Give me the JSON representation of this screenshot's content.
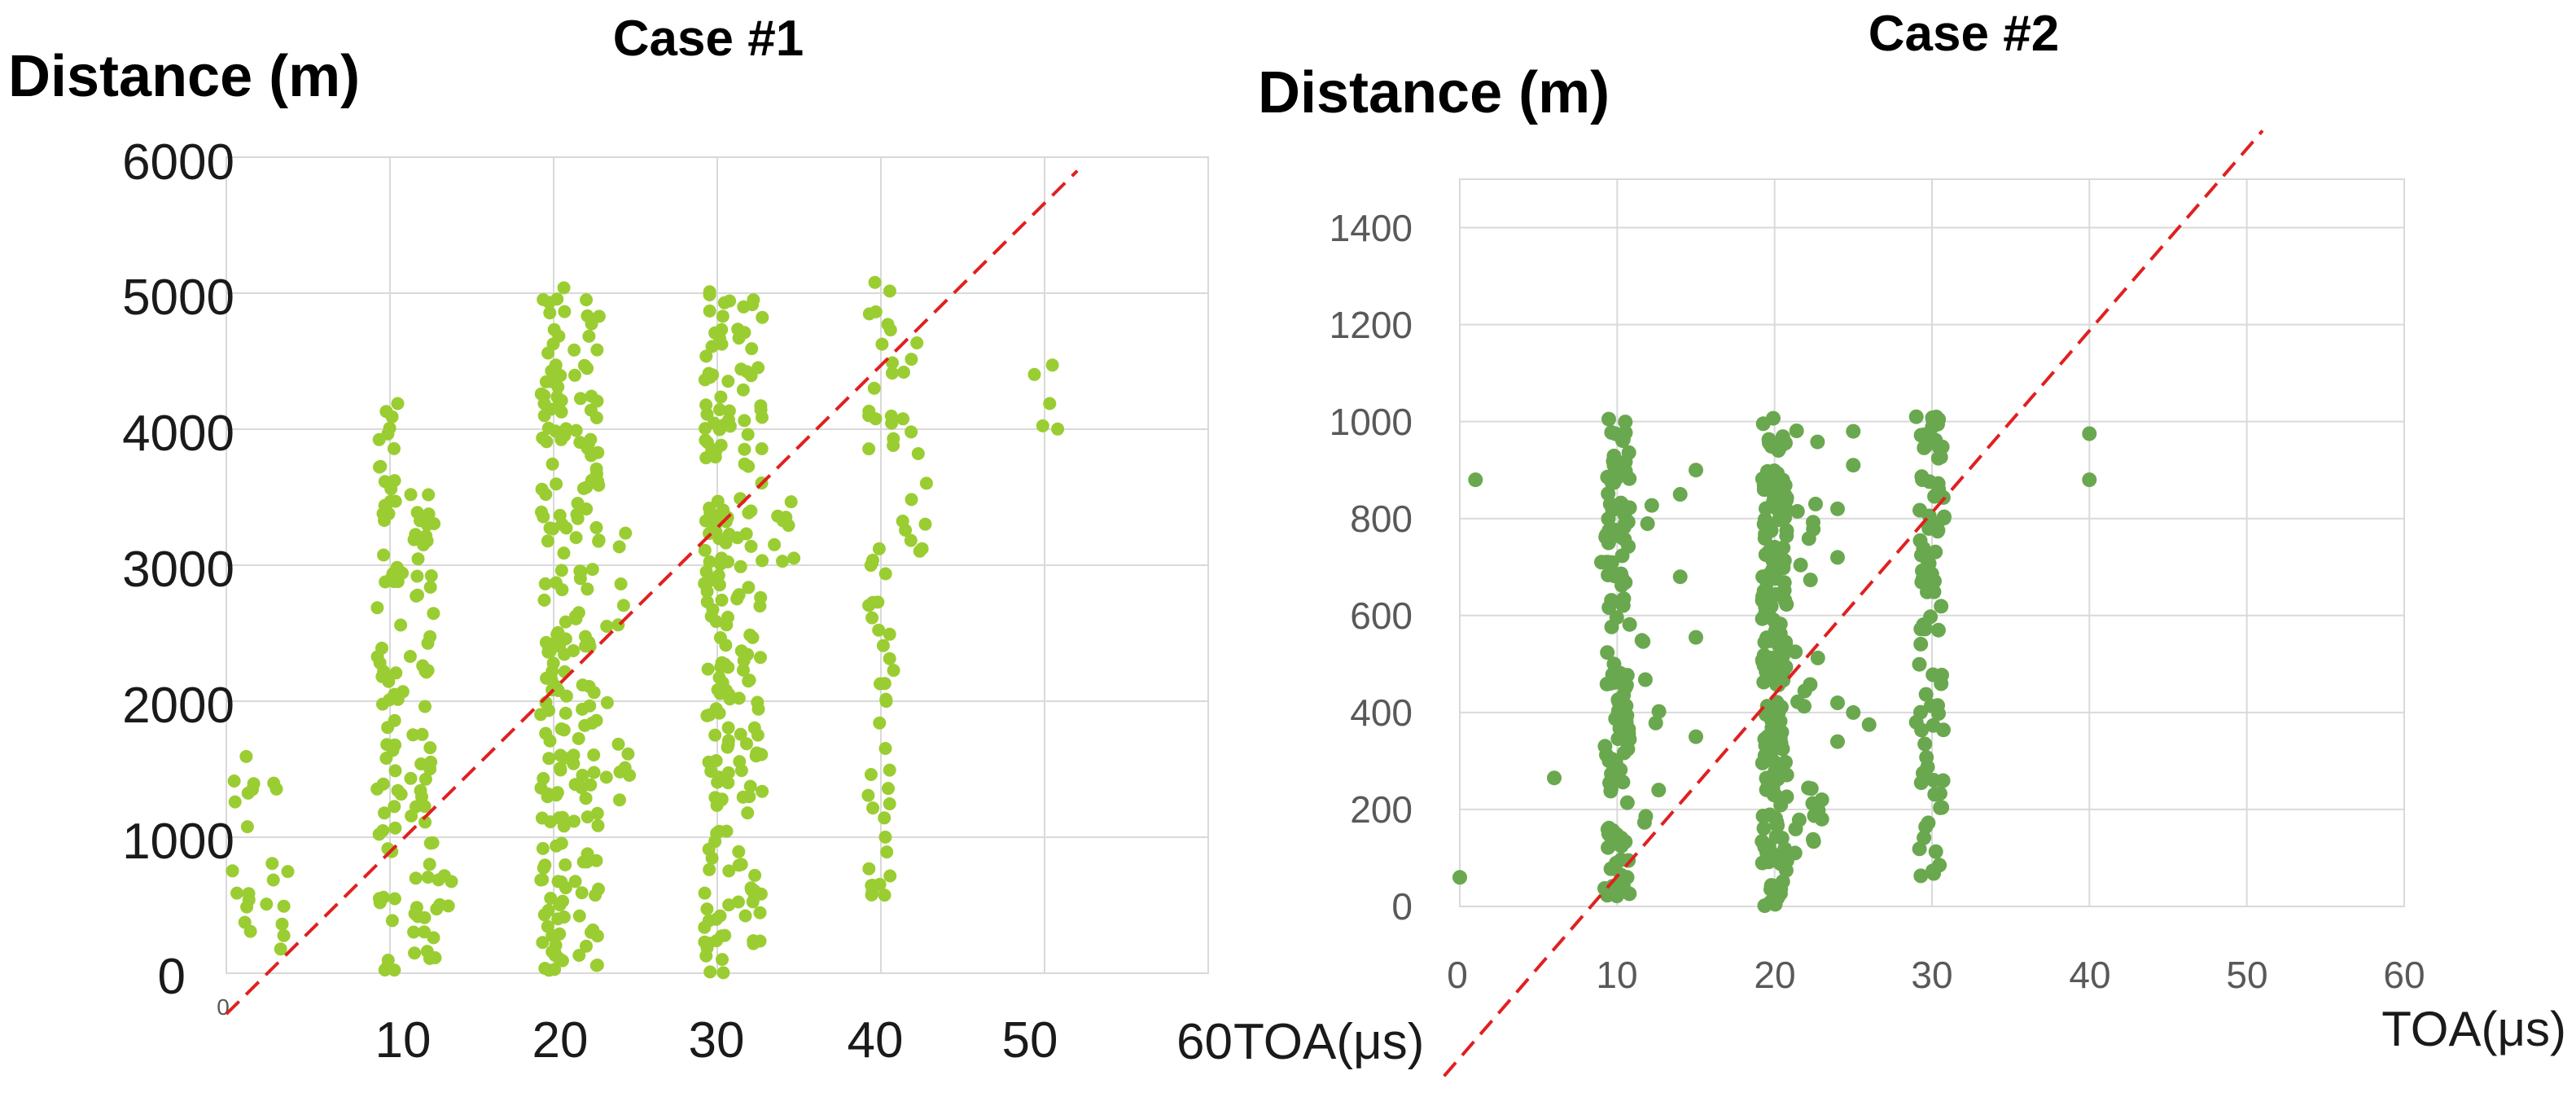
{
  "chart_data": [
    {
      "type": "scatter",
      "title": "Case #1",
      "ylabel": "Distance (m)",
      "xlabel": "TOA(μs)",
      "xlim": [
        0,
        60
      ],
      "ylim": [
        0,
        6000
      ],
      "x_ticks": [
        "10",
        "20",
        "30",
        "40",
        "50",
        "60"
      ],
      "x_origin_label": "0",
      "y_ticks": [
        "0",
        "1000",
        "2000",
        "3000",
        "4000",
        "5000",
        "6000"
      ],
      "grid": true,
      "point_color": "#9acd32",
      "reference_line": {
        "style": "dashed",
        "color": "#e02020",
        "from": [
          0,
          -300
        ],
        "to": [
          52,
          5900
        ]
      },
      "columns": [
        {
          "x": 1,
          "y_min": 0,
          "y_max": 1600,
          "n": 14
        },
        {
          "x": 3,
          "y_min": 0,
          "y_max": 1600,
          "n": 10
        },
        {
          "x": 10,
          "y_min": 0,
          "y_max": 4200,
          "n": 70
        },
        {
          "x": 12,
          "y_min": 0,
          "y_max": 3550,
          "n": 55
        },
        {
          "x": 13,
          "y_min": 0,
          "y_max": 1000,
          "n": 8
        },
        {
          "x": 20,
          "y_min": 0,
          "y_max": 5050,
          "n": 130
        },
        {
          "x": 22,
          "y_min": 0,
          "y_max": 5000,
          "n": 90
        },
        {
          "x": 24,
          "y_min": 1200,
          "y_max": 3500,
          "n": 14
        },
        {
          "x": 30,
          "y_min": 0,
          "y_max": 5150,
          "n": 130
        },
        {
          "x": 32,
          "y_min": 200,
          "y_max": 5100,
          "n": 80
        },
        {
          "x": 34,
          "y_min": 2900,
          "y_max": 3500,
          "n": 8
        },
        {
          "x": 40,
          "y_min": 500,
          "y_max": 5100,
          "n": 55
        },
        {
          "x": 42,
          "y_min": 3000,
          "y_max": 4700,
          "n": 14
        },
        {
          "x": 50,
          "y_min": 3850,
          "y_max": 4750,
          "n": 5
        }
      ]
    },
    {
      "type": "scatter",
      "title": "Case #2",
      "ylabel": "Distance (m)",
      "xlabel": "TOA(μs)",
      "xlim": [
        0,
        60
      ],
      "ylim": [
        0,
        1500
      ],
      "x_ticks": [
        "0",
        "10",
        "20",
        "30",
        "40",
        "50",
        "60"
      ],
      "y_ticks": [
        "0",
        "200",
        "400",
        "600",
        "800",
        "1000",
        "1200",
        "1400"
      ],
      "grid": true,
      "point_color": "#6aa84f",
      "reference_line": {
        "style": "dashed",
        "color": "#e02020",
        "from": [
          -1,
          -350
        ],
        "to": [
          51,
          1600
        ]
      },
      "columns": [
        {
          "x": 10,
          "y_min": 20,
          "y_max": 1010,
          "n": 140
        },
        {
          "x": 20,
          "y_min": 0,
          "y_max": 1010,
          "n": 200
        },
        {
          "x": 30,
          "y_min": 60,
          "y_max": 1010,
          "n": 90
        },
        {
          "x": 12,
          "y_min": 150,
          "y_max": 920,
          "n": 10
        },
        {
          "x": 22,
          "y_min": 100,
          "y_max": 1000,
          "n": 25
        }
      ],
      "isolated_points": [
        {
          "x": 0,
          "y": 60
        },
        {
          "x": 1,
          "y": 880
        },
        {
          "x": 6,
          "y": 265
        },
        {
          "x": 9,
          "y": 710
        },
        {
          "x": 14,
          "y": 850
        },
        {
          "x": 14,
          "y": 680
        },
        {
          "x": 15,
          "y": 900
        },
        {
          "x": 15,
          "y": 555
        },
        {
          "x": 15,
          "y": 350
        },
        {
          "x": 24,
          "y": 820
        },
        {
          "x": 24,
          "y": 720
        },
        {
          "x": 24,
          "y": 420
        },
        {
          "x": 25,
          "y": 980
        },
        {
          "x": 25,
          "y": 910
        },
        {
          "x": 25,
          "y": 400
        },
        {
          "x": 26,
          "y": 375
        },
        {
          "x": 24,
          "y": 340
        },
        {
          "x": 23,
          "y": 220
        },
        {
          "x": 23,
          "y": 180
        },
        {
          "x": 29,
          "y": 1010
        },
        {
          "x": 29,
          "y": 380
        },
        {
          "x": 40,
          "y": 975
        },
        {
          "x": 40,
          "y": 880
        }
      ]
    }
  ]
}
